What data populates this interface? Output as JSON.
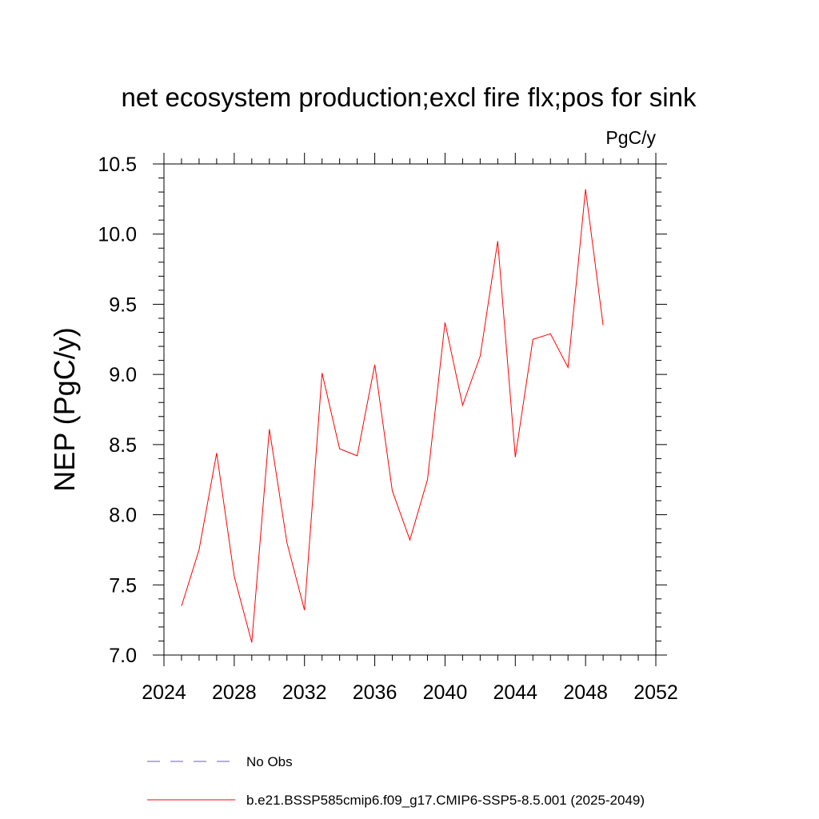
{
  "chart_data": {
    "type": "line",
    "title": "net ecosystem production;excl fire flx;pos for sink",
    "units": "PgC/y",
    "xlabel": "",
    "ylabel": "NEP  (PgC/y)",
    "xlim": [
      2024,
      2052
    ],
    "ylim": [
      7.0,
      10.5
    ],
    "x_ticks": [
      "2024",
      "2028",
      "2032",
      "2036",
      "2040",
      "2044",
      "2048",
      "2052"
    ],
    "y_ticks": [
      "7.0",
      "7.5",
      "8.0",
      "8.5",
      "9.0",
      "9.5",
      "10.0",
      "10.5"
    ],
    "series": [
      {
        "name": "b.e21.BSSP585cmip6.f09_g17.CMIP6-SSP5-8.5.001 (2025-2049)",
        "color": "#ff0000",
        "style": "solid",
        "x": [
          2025,
          2026,
          2027,
          2028,
          2029,
          2030,
          2031,
          2032,
          2033,
          2034,
          2035,
          2036,
          2037,
          2038,
          2039,
          2040,
          2041,
          2042,
          2043,
          2044,
          2045,
          2046,
          2047,
          2048,
          2049
        ],
        "values": [
          7.35,
          7.75,
          8.44,
          7.56,
          7.09,
          8.61,
          7.8,
          7.32,
          9.01,
          8.47,
          8.42,
          9.07,
          8.17,
          7.82,
          8.25,
          9.37,
          8.78,
          9.13,
          9.95,
          8.41,
          9.25,
          9.29,
          9.05,
          10.32,
          9.35
        ]
      }
    ],
    "legend": [
      {
        "label": "No Obs",
        "color": "#6a5acd",
        "style": "dashed"
      },
      {
        "label": "b.e21.BSSP585cmip6.f09_g17.CMIP6-SSP5-8.5.001 (2025-2049)",
        "color": "#ff0000",
        "style": "solid"
      }
    ],
    "legend_position": "bottom",
    "grid": false
  }
}
